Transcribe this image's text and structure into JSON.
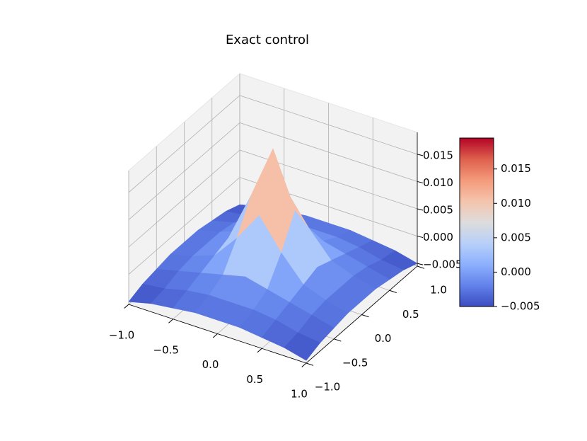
{
  "chart_data": {
    "type": "surface",
    "title": "Exact control",
    "x": [
      -1,
      -0.75,
      -0.5,
      -0.25,
      0,
      0.25,
      0.5,
      0.75,
      1
    ],
    "y": [
      -1,
      -0.75,
      -0.5,
      -0.25,
      0,
      0.25,
      0.5,
      0.75,
      1
    ],
    "z": [
      [
        -0.005,
        -0.004,
        -0.0035,
        -0.003,
        -0.003,
        -0.003,
        -0.0035,
        -0.004,
        -0.005
      ],
      [
        -0.004,
        -0.0035,
        -0.0025,
        -0.002,
        -0.002,
        -0.002,
        -0.0025,
        -0.0035,
        -0.004
      ],
      [
        -0.0035,
        -0.0025,
        -0.0015,
        -0.0005,
        0.0005,
        -0.0005,
        -0.0015,
        -0.0025,
        -0.0035
      ],
      [
        -0.003,
        -0.002,
        -0.0005,
        0.004,
        0.0095,
        0.004,
        -0.0005,
        -0.002,
        -0.003
      ],
      [
        -0.003,
        -0.002,
        0.0005,
        0.0095,
        0.0195,
        0.0095,
        0.0005,
        -0.002,
        -0.003
      ],
      [
        -0.003,
        -0.002,
        -0.0005,
        0.004,
        0.0095,
        0.004,
        -0.0005,
        -0.002,
        -0.003
      ],
      [
        -0.0035,
        -0.0025,
        -0.0015,
        -0.0005,
        0.0005,
        -0.0005,
        -0.0015,
        -0.0025,
        -0.0035
      ],
      [
        -0.004,
        -0.0035,
        -0.0025,
        -0.002,
        -0.002,
        -0.002,
        -0.0025,
        -0.0035,
        -0.004
      ],
      [
        -0.005,
        -0.004,
        -0.0035,
        -0.003,
        -0.003,
        -0.003,
        -0.0035,
        -0.004,
        -0.005
      ]
    ],
    "xlim": [
      -1,
      1
    ],
    "ylim": [
      -1,
      1
    ],
    "zlim": [
      -0.0055,
      0.019
    ],
    "xticks": [
      {
        "value": -1,
        "label": "−1.0"
      },
      {
        "value": -0.5,
        "label": "−0.5"
      },
      {
        "value": 0,
        "label": "0.0"
      },
      {
        "value": 0.5,
        "label": "0.5"
      },
      {
        "value": 1,
        "label": "1.0"
      }
    ],
    "yticks": [
      {
        "value": -1,
        "label": "−1.0"
      },
      {
        "value": -0.5,
        "label": "−0.5"
      },
      {
        "value": 0,
        "label": "0.0"
      },
      {
        "value": 0.5,
        "label": "0.5"
      },
      {
        "value": 1,
        "label": "1.0"
      }
    ],
    "zticks": [
      {
        "value": -0.005,
        "label": "−0.005"
      },
      {
        "value": 0,
        "label": "0.000"
      },
      {
        "value": 0.005,
        "label": "0.005"
      },
      {
        "value": 0.01,
        "label": "0.010"
      },
      {
        "value": 0.015,
        "label": "0.015"
      }
    ],
    "colorbar": {
      "lim": [
        -0.005,
        0.0195
      ],
      "ticks": [
        {
          "value": -0.005,
          "label": "−0.005"
        },
        {
          "value": 0,
          "label": "0.000"
        },
        {
          "value": 0.005,
          "label": "0.005"
        },
        {
          "value": 0.01,
          "label": "0.010"
        },
        {
          "value": 0.015,
          "label": "0.015"
        }
      ]
    },
    "colormap": [
      "#3b4cc0",
      "#6282ea",
      "#8db0fe",
      "#b8d0f9",
      "#dddcdc",
      "#f5c4ac",
      "#f49a7b",
      "#de604d",
      "#b40426"
    ],
    "grid": true
  }
}
